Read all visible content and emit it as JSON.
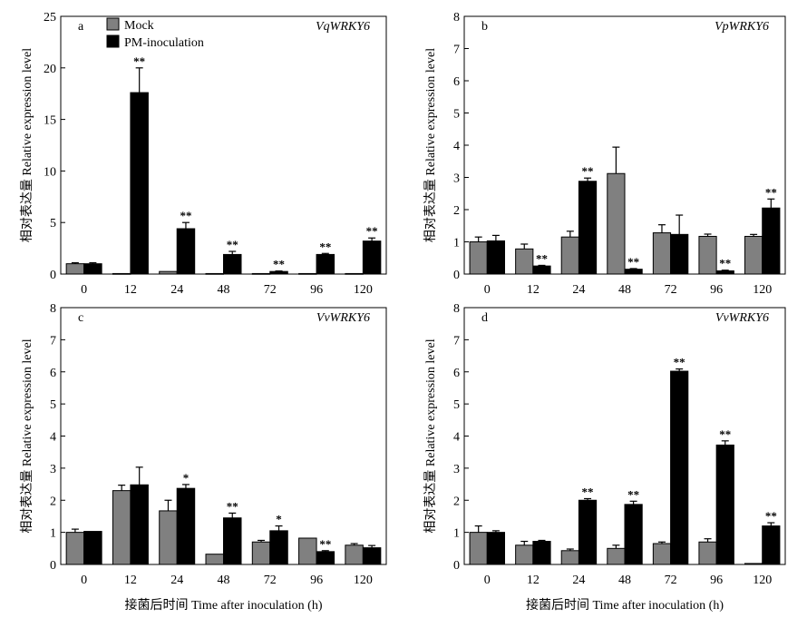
{
  "chart_data": [
    {
      "type": "bar",
      "panel": "a",
      "gene": "VqWRKY6",
      "ylabel": "相对表达量 Relative expression level",
      "xlabel": "",
      "ylim": [
        0,
        25
      ],
      "yticks": [
        "0",
        "5",
        "10",
        "15",
        "20",
        "25"
      ],
      "categories": [
        "0",
        "12",
        "24",
        "48",
        "72",
        "96",
        "120"
      ],
      "legend": [
        "Mock",
        "PM-inoculation"
      ],
      "series": [
        {
          "name": "Mock",
          "color": "#808080",
          "values": [
            1.0,
            0.05,
            0.25,
            0.05,
            0.05,
            0.05,
            0.05
          ],
          "errors": [
            0.1,
            0.0,
            0.0,
            0.0,
            0.0,
            0.0,
            0.0
          ],
          "sig": [
            "",
            "",
            "",
            "",
            "",
            "",
            ""
          ]
        },
        {
          "name": "PM-inoculation",
          "color": "#000000",
          "values": [
            1.0,
            17.6,
            4.4,
            1.9,
            0.25,
            1.9,
            3.2
          ],
          "errors": [
            0.1,
            2.4,
            0.6,
            0.3,
            0.05,
            0.1,
            0.3
          ],
          "sig": [
            "",
            "**",
            "**",
            "**",
            "**",
            "**",
            "**"
          ]
        }
      ]
    },
    {
      "type": "bar",
      "panel": "b",
      "gene": "VpWRKY6",
      "ylabel": "相对表达量 Relative expression level",
      "xlabel": "",
      "ylim": [
        0,
        8
      ],
      "yticks": [
        "0",
        "1",
        "2",
        "3",
        "4",
        "5",
        "6",
        "7",
        "8"
      ],
      "categories": [
        "0",
        "12",
        "24",
        "48",
        "72",
        "96",
        "120"
      ],
      "series": [
        {
          "name": "Mock",
          "color": "#808080",
          "values": [
            1.0,
            0.78,
            1.15,
            3.12,
            1.28,
            1.17,
            1.17
          ],
          "errors": [
            0.15,
            0.15,
            0.18,
            0.82,
            0.25,
            0.07,
            0.06
          ],
          "sig": [
            "",
            "",
            "",
            "",
            "",
            "",
            ""
          ]
        },
        {
          "name": "PM-inoculation",
          "color": "#000000",
          "values": [
            1.03,
            0.25,
            2.88,
            0.15,
            1.23,
            0.1,
            2.05
          ],
          "errors": [
            0.17,
            0.02,
            0.1,
            0.02,
            0.6,
            0.02,
            0.28
          ],
          "sig": [
            "",
            "**",
            "**",
            "**",
            "",
            "**",
            "**"
          ]
        }
      ]
    },
    {
      "type": "bar",
      "panel": "c",
      "gene": "VvWRKY6",
      "ylabel": "相对表达量 Relative expression level",
      "xlabel": "接菌后时间 Time after inoculation (h)",
      "ylim": [
        0,
        8
      ],
      "yticks": [
        "0",
        "1",
        "2",
        "3",
        "4",
        "5",
        "6",
        "7",
        "8"
      ],
      "categories": [
        "0",
        "12",
        "24",
        "48",
        "72",
        "96",
        "120"
      ],
      "series": [
        {
          "name": "Mock",
          "color": "#808080",
          "values": [
            1.0,
            2.3,
            1.67,
            0.32,
            0.7,
            0.82,
            0.6
          ],
          "errors": [
            0.1,
            0.17,
            0.33,
            0.0,
            0.05,
            0.0,
            0.05
          ],
          "sig": [
            "",
            "",
            "",
            "",
            "",
            "",
            ""
          ]
        },
        {
          "name": "PM-inoculation",
          "color": "#000000",
          "values": [
            1.03,
            2.48,
            2.37,
            1.45,
            1.05,
            0.4,
            0.52
          ],
          "errors": [
            0.0,
            0.55,
            0.12,
            0.15,
            0.15,
            0.03,
            0.07
          ],
          "sig": [
            "",
            "",
            "*",
            "**",
            "*",
            "**",
            ""
          ]
        }
      ]
    },
    {
      "type": "bar",
      "panel": "d",
      "gene": "VvWRKY6",
      "ylabel": "相对表达量 Relative expression level",
      "xlabel": "接菌后时间 Time after inoculation (h)",
      "ylim": [
        0,
        8
      ],
      "yticks": [
        "0",
        "1",
        "2",
        "3",
        "4",
        "5",
        "6",
        "7",
        "8"
      ],
      "categories": [
        "0",
        "12",
        "24",
        "48",
        "72",
        "96",
        "120"
      ],
      "series": [
        {
          "name": "Mock",
          "color": "#808080",
          "values": [
            1.0,
            0.6,
            0.43,
            0.5,
            0.65,
            0.7,
            0.03
          ],
          "errors": [
            0.2,
            0.12,
            0.05,
            0.1,
            0.05,
            0.1,
            0.0
          ],
          "sig": [
            "",
            "",
            "",
            "",
            "",
            "",
            ""
          ]
        },
        {
          "name": "PM-inoculation",
          "color": "#000000",
          "values": [
            1.0,
            0.72,
            2.0,
            1.87,
            6.02,
            3.72,
            1.2
          ],
          "errors": [
            0.05,
            0.03,
            0.05,
            0.1,
            0.07,
            0.13,
            0.1
          ],
          "sig": [
            "",
            "",
            "**",
            "**",
            "**",
            "**",
            "**"
          ]
        }
      ]
    }
  ]
}
